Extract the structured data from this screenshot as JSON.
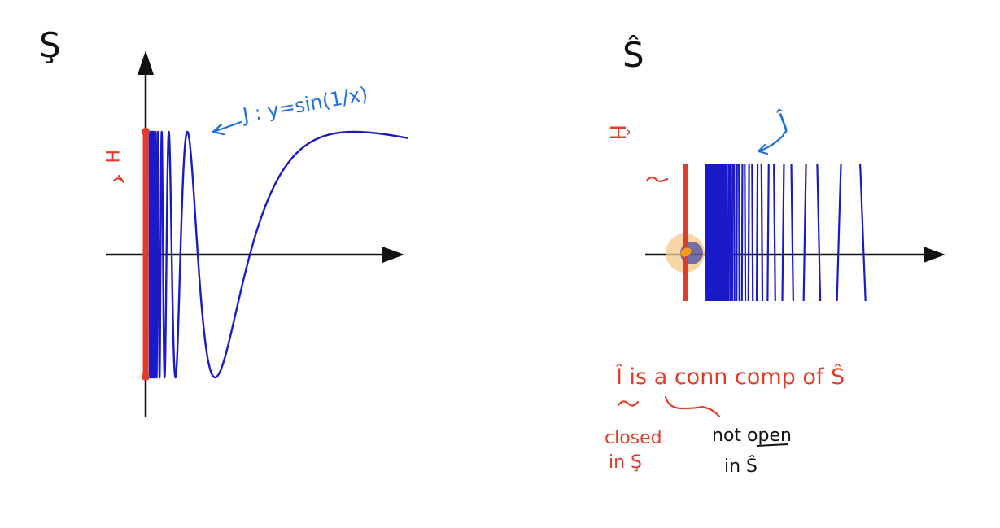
{
  "left_figure": {
    "space_symbol": "Ş",
    "curve_label": "J : y=sin(1/x)",
    "segment_label": "H"
  },
  "right_figure": {
    "space_symbol": "Ŝ",
    "curve_label": "Ĵ",
    "segment_label": "Ĥ"
  },
  "notes": {
    "statement": "Î is a conn comp of Ŝ",
    "closed_label": "closed",
    "closed_in": "in Ş",
    "not_open_label": "not open",
    "not_open_in": "in Ŝ"
  },
  "colors": {
    "curve": "#1a1ac8",
    "curve_dense": "#0a2bff",
    "segment": "#e23b2a",
    "annotation_red": "#e23b2a",
    "annotation_blue": "#1f6fe0",
    "point_highlight": "#f6c88a",
    "point": "#f39c12",
    "axis": "#111111"
  },
  "chart_data": [
    {
      "type": "line",
      "function": "sin(1/x)",
      "xlim": [
        0,
        0.8
      ],
      "ylim": [
        -1,
        1
      ],
      "segment": {
        "x": 0,
        "y_range": [
          -1,
          1
        ]
      }
    },
    {
      "type": "line",
      "function": "sin(1/x)",
      "window": "zoomed near x=0",
      "point": {
        "x": 0,
        "y": 0
      }
    }
  ]
}
